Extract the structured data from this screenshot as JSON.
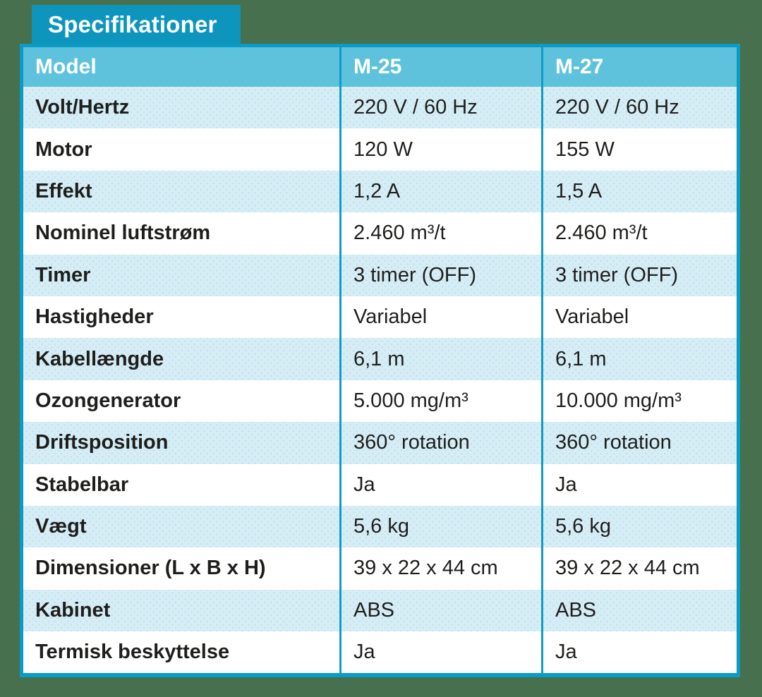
{
  "page": {
    "background_color": "#47714E"
  },
  "title": {
    "label": "Specifikationer",
    "background_color": "#0D95BE",
    "text_color": "#FFFFFF"
  },
  "table": {
    "border_color": "#0A9BC6",
    "divider_color": "#0F9CC8",
    "header": {
      "background_color": "#5FC2DD",
      "text_color": "#FFFFFF",
      "columns": [
        "Model",
        "M-25",
        "M-27"
      ]
    },
    "row_colors": {
      "odd": "#FFFFFF",
      "even": "#D7EDF6"
    },
    "text_color": "#1E1E1C",
    "rows": [
      {
        "label": "Volt/Hertz",
        "m25": "220 V / 60 Hz",
        "m27": "220 V / 60 Hz"
      },
      {
        "label": "Motor",
        "m25": "120 W",
        "m27": "155 W"
      },
      {
        "label": "Effekt",
        "m25": "1,2 A",
        "m27": "1,5 A"
      },
      {
        "label": "Nominel luftstrøm",
        "m25": "2.460 m³/t",
        "m27": "2.460 m³/t"
      },
      {
        "label": "Timer",
        "m25": "3 timer (OFF)",
        "m27": "3 timer (OFF)"
      },
      {
        "label": "Hastigheder",
        "m25": "Variabel",
        "m27": "Variabel"
      },
      {
        "label": "Kabellængde",
        "m25": "6,1 m",
        "m27": "6,1 m"
      },
      {
        "label": "Ozongenerator",
        "m25": "5.000 mg/m³",
        "m27": "10.000 mg/m³"
      },
      {
        "label": "Driftsposition",
        "m25": "360° rotation",
        "m27": "360° rotation"
      },
      {
        "label": "Stabelbar",
        "m25": "Ja",
        "m27": "Ja"
      },
      {
        "label": "Vægt",
        "m25": "5,6 kg",
        "m27": "5,6 kg"
      },
      {
        "label": "Dimensioner (L x B x H)",
        "m25": "39 x 22 x 44 cm",
        "m27": "39 x 22 x 44 cm"
      },
      {
        "label": "Kabinet",
        "m25": "ABS",
        "m27": "ABS"
      },
      {
        "label": "Termisk beskyttelse",
        "m25": "Ja",
        "m27": "Ja"
      }
    ]
  }
}
